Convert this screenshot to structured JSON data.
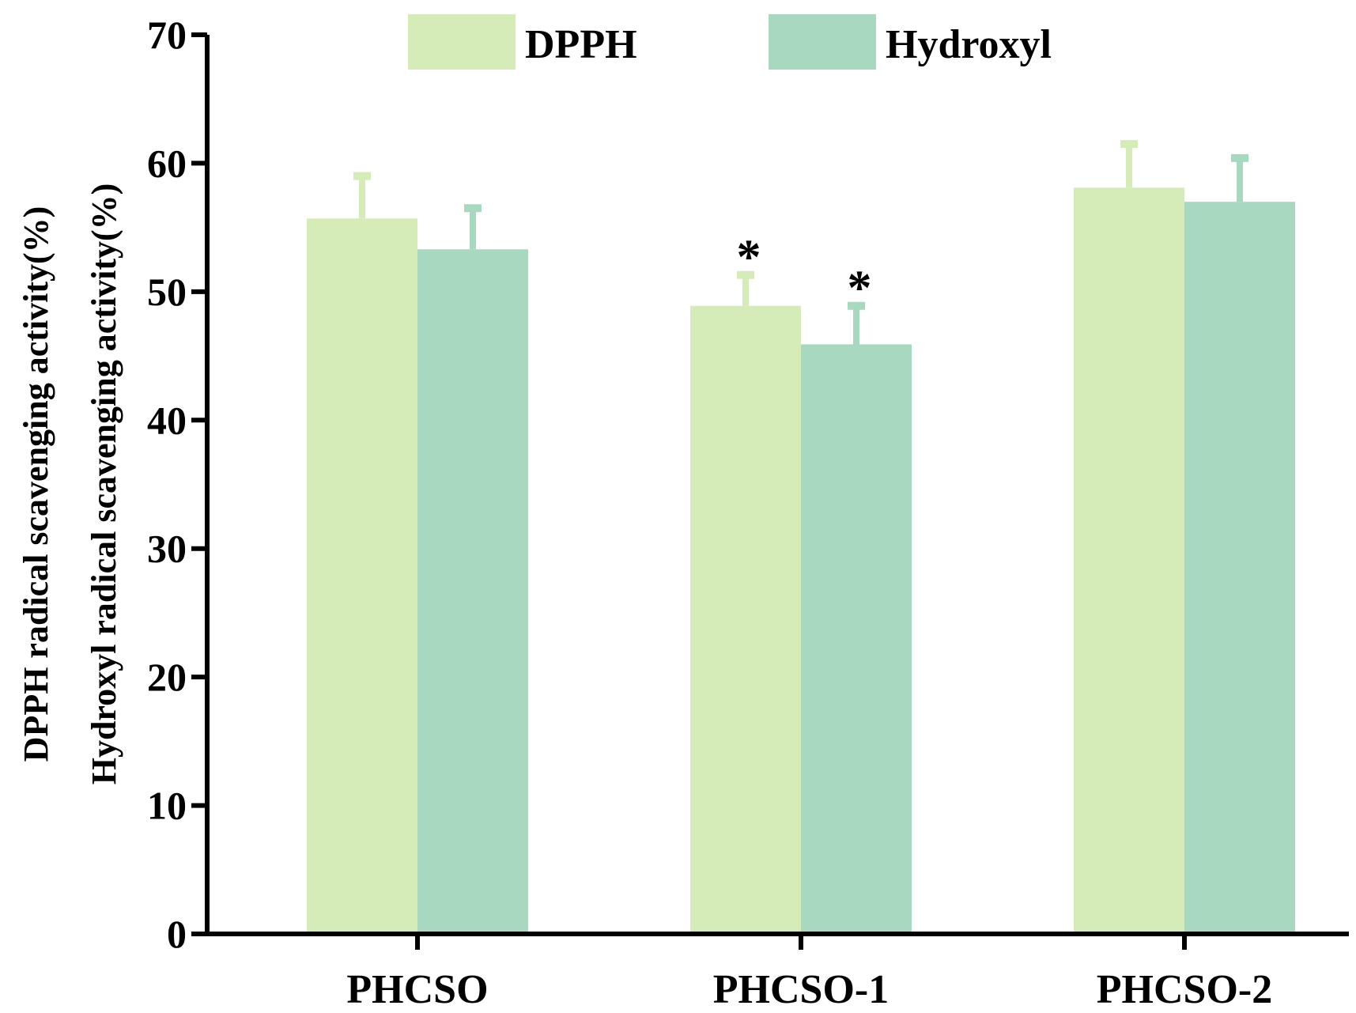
{
  "chart_data": {
    "type": "bar",
    "categories": [
      "PHCSO",
      "PHCSO-1",
      "PHCSO-2"
    ],
    "series": [
      {
        "name": "DPPH",
        "color": "#d5ecb8",
        "values": [
          55.7,
          48.9,
          58.1
        ],
        "errors": [
          3.3,
          2.4,
          3.4
        ],
        "significance": [
          "",
          "*",
          ""
        ]
      },
      {
        "name": "Hydroxyl",
        "color": "#a8d8c0",
        "values": [
          53.3,
          45.9,
          57.0
        ],
        "errors": [
          3.2,
          3.0,
          3.4
        ],
        "significance": [
          "",
          "*",
          ""
        ]
      }
    ],
    "yticks": [
      0,
      10,
      20,
      30,
      40,
      50,
      60,
      70
    ],
    "ylim": [
      0,
      70
    ],
    "ylabel_lines": [
      "DPPH radical scavenging activity(%)",
      "Hydroxyl radical scavenging activity(%)"
    ],
    "xlabel": "",
    "title": "",
    "legend_position": "top-center",
    "grid": false
  }
}
